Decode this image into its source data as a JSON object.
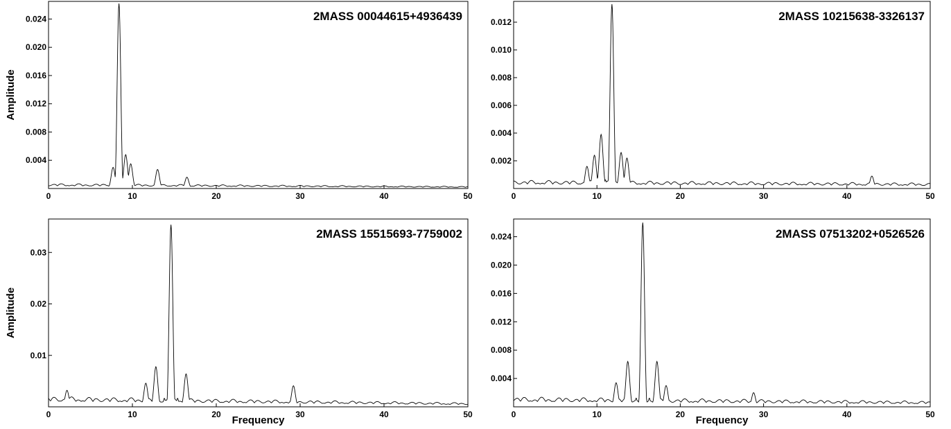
{
  "chart_data": [
    {
      "type": "line",
      "title": "2MASS 00044615+4936439",
      "xlabel": "",
      "ylabel": "Amplitude",
      "xlim": [
        0,
        50
      ],
      "ylim": [
        0,
        0.0265
      ],
      "xticks": [
        0,
        10,
        20,
        30,
        40,
        50
      ],
      "yticks": [
        0.004,
        0.008,
        0.012,
        0.016,
        0.02,
        0.024
      ],
      "ytick_labels": [
        "0.004",
        "0.008",
        "0.012",
        "0.016",
        "0.020",
        "0.024"
      ],
      "peaks": [
        {
          "x": 8.4,
          "y": 0.0262
        },
        {
          "x": 9.2,
          "y": 0.0048
        },
        {
          "x": 9.8,
          "y": 0.0035
        },
        {
          "x": 7.7,
          "y": 0.003
        },
        {
          "x": 13.0,
          "y": 0.0027
        },
        {
          "x": 16.5,
          "y": 0.0016
        }
      ],
      "baseline": {
        "x_start": 0,
        "x_end": 50,
        "level_start": 0.0007,
        "level_end": 0.0003
      }
    },
    {
      "type": "line",
      "title": "2MASS 10215638-3326137",
      "xlabel": "",
      "ylabel": "",
      "xlim": [
        0,
        50
      ],
      "ylim": [
        0,
        0.0135
      ],
      "xticks": [
        0,
        10,
        20,
        30,
        40,
        50
      ],
      "yticks": [
        0.002,
        0.004,
        0.006,
        0.008,
        0.01,
        0.012
      ],
      "ytick_labels": [
        "0.002",
        "0.004",
        "0.006",
        "0.008",
        "0.010",
        "0.012"
      ],
      "peaks": [
        {
          "x": 11.8,
          "y": 0.0133
        },
        {
          "x": 10.5,
          "y": 0.0039
        },
        {
          "x": 12.9,
          "y": 0.0026
        },
        {
          "x": 13.6,
          "y": 0.0022
        },
        {
          "x": 9.7,
          "y": 0.0024
        },
        {
          "x": 8.8,
          "y": 0.0016
        },
        {
          "x": 43.0,
          "y": 0.0009
        }
      ],
      "baseline": {
        "x_start": 0,
        "x_end": 50,
        "level_start": 0.0006,
        "level_end": 0.0004
      }
    },
    {
      "type": "line",
      "title": "2MASS 15515693-7759002",
      "xlabel": "Frequency",
      "ylabel": "Amplitude",
      "xlim": [
        0,
        50
      ],
      "ylim": [
        0,
        0.0365
      ],
      "xticks": [
        0,
        10,
        20,
        30,
        40,
        50
      ],
      "yticks": [
        0.01,
        0.02,
        0.03
      ],
      "ytick_labels": [
        "0.01",
        "0.02",
        "0.03"
      ],
      "peaks": [
        {
          "x": 14.6,
          "y": 0.0354
        },
        {
          "x": 12.8,
          "y": 0.0078
        },
        {
          "x": 16.4,
          "y": 0.0064
        },
        {
          "x": 11.6,
          "y": 0.0046
        },
        {
          "x": 29.2,
          "y": 0.0041
        },
        {
          "x": 2.2,
          "y": 0.0032
        }
      ],
      "baseline": {
        "x_start": 0,
        "x_end": 50,
        "level_start": 0.002,
        "level_end": 0.0008
      }
    },
    {
      "type": "line",
      "title": "2MASS 07513202+0526526",
      "xlabel": "Frequency",
      "ylabel": "",
      "xlim": [
        0,
        50
      ],
      "ylim": [
        0,
        0.0265
      ],
      "xticks": [
        0,
        10,
        20,
        30,
        40,
        50
      ],
      "yticks": [
        0.004,
        0.008,
        0.012,
        0.016,
        0.02,
        0.024
      ],
      "ytick_labels": [
        "0.004",
        "0.008",
        "0.012",
        "0.016",
        "0.020",
        "0.024"
      ],
      "peaks": [
        {
          "x": 15.5,
          "y": 0.026
        },
        {
          "x": 13.7,
          "y": 0.0064
        },
        {
          "x": 17.2,
          "y": 0.0064
        },
        {
          "x": 12.3,
          "y": 0.0034
        },
        {
          "x": 18.3,
          "y": 0.003
        },
        {
          "x": 28.8,
          "y": 0.002
        }
      ],
      "baseline": {
        "x_start": 0,
        "x_end": 50,
        "level_start": 0.0014,
        "level_end": 0.0008
      }
    }
  ]
}
